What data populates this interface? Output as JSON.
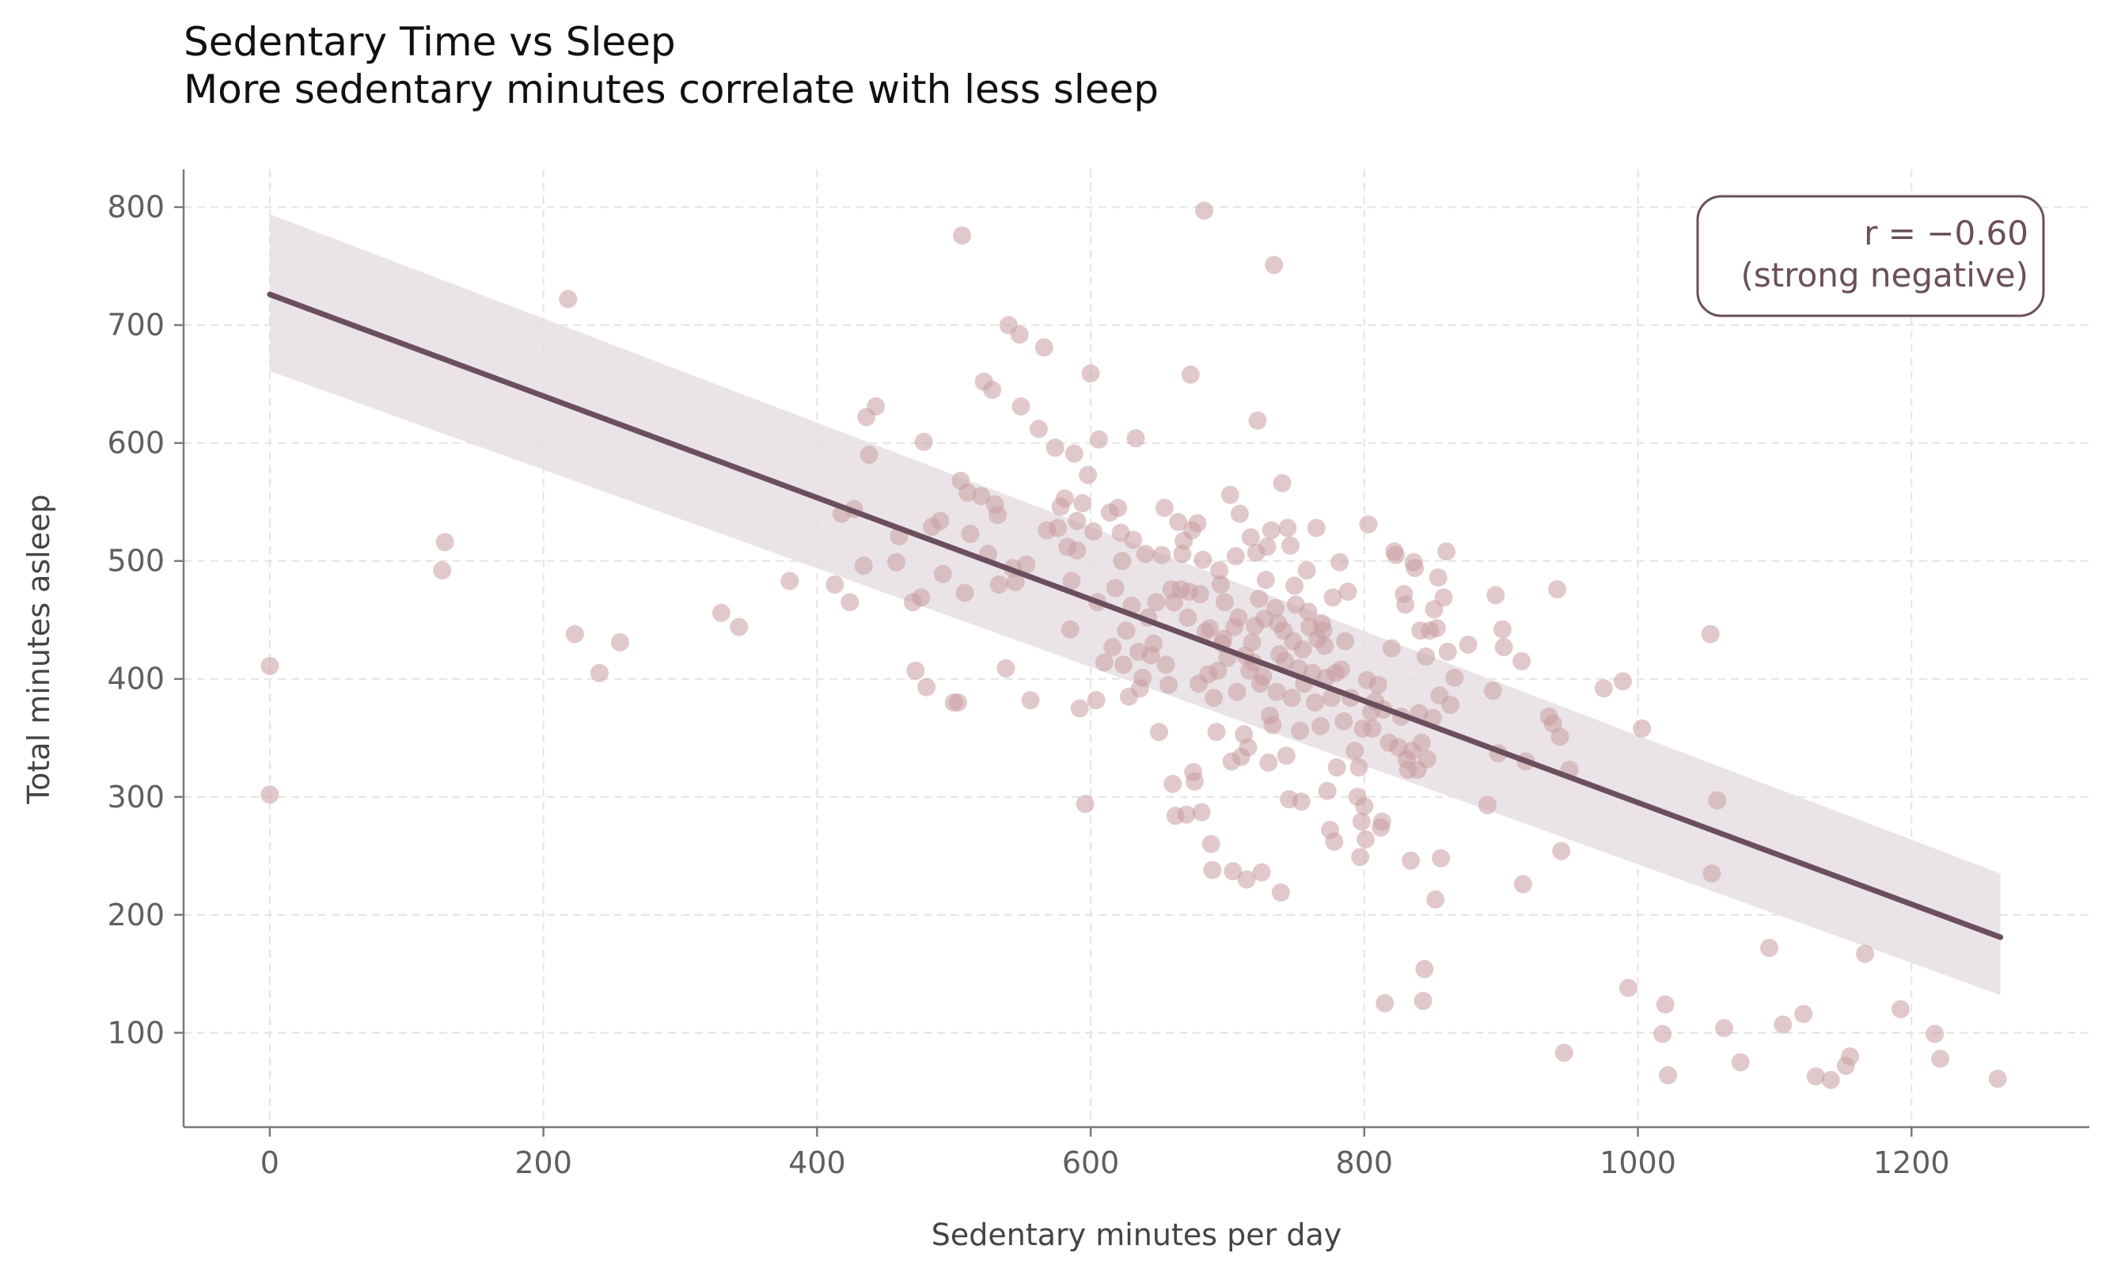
{
  "chart_data": {
    "type": "scatter",
    "title": "Sedentary Time vs Sleep",
    "subtitle": "More sedentary minutes correlate with less sleep",
    "xlabel": "Sedentary minutes per day",
    "ylabel": "Total minutes asleep",
    "xlim": [
      -63,
      1330
    ],
    "ylim": [
      20,
      832
    ],
    "x_ticks": [
      0,
      200,
      400,
      600,
      800,
      1000,
      1200
    ],
    "y_ticks": [
      100,
      200,
      300,
      400,
      500,
      600,
      700,
      800
    ],
    "grid": true,
    "colors": {
      "points": "#c99ca0",
      "line": "#6b4f5e",
      "band": "#e6dfe4",
      "grid": "#e4e4e4",
      "axis": "#7a7a7a"
    },
    "regression": {
      "x": [
        0,
        1265
      ],
      "y": [
        726,
        181
      ],
      "band_lower": [
        661,
        132
      ],
      "band_upper": [
        794,
        235
      ]
    },
    "annotation": {
      "line1": "r = −0.60",
      "line2": "(strong negative)"
    },
    "points": [
      [
        0,
        411
      ],
      [
        0,
        302
      ],
      [
        126,
        492
      ],
      [
        128,
        516
      ],
      [
        218,
        722
      ],
      [
        223,
        438
      ],
      [
        241,
        405
      ],
      [
        256,
        431
      ],
      [
        330,
        456
      ],
      [
        343,
        444
      ],
      [
        380,
        483
      ],
      [
        413,
        480
      ],
      [
        418,
        540
      ],
      [
        424,
        465
      ],
      [
        427,
        544
      ],
      [
        434,
        496
      ],
      [
        436,
        622
      ],
      [
        438,
        590
      ],
      [
        443,
        631
      ],
      [
        458,
        499
      ],
      [
        460,
        521
      ],
      [
        470,
        465
      ],
      [
        472,
        407
      ],
      [
        476,
        469
      ],
      [
        478,
        601
      ],
      [
        480,
        393
      ],
      [
        484,
        529
      ],
      [
        490,
        534
      ],
      [
        492,
        489
      ],
      [
        500,
        380
      ],
      [
        503,
        380
      ],
      [
        505,
        568
      ],
      [
        506,
        776
      ],
      [
        508,
        473
      ],
      [
        510,
        558
      ],
      [
        512,
        523
      ],
      [
        520,
        555
      ],
      [
        522,
        652
      ],
      [
        525,
        506
      ],
      [
        528,
        645
      ],
      [
        530,
        548
      ],
      [
        532,
        539
      ],
      [
        533,
        480
      ],
      [
        538,
        409
      ],
      [
        540,
        700
      ],
      [
        543,
        494
      ],
      [
        545,
        482
      ],
      [
        548,
        692
      ],
      [
        549,
        631
      ],
      [
        553,
        497
      ],
      [
        556,
        382
      ],
      [
        562,
        612
      ],
      [
        566,
        681
      ],
      [
        568,
        526
      ],
      [
        574,
        596
      ],
      [
        576,
        528
      ],
      [
        578,
        546
      ],
      [
        581,
        553
      ],
      [
        583,
        512
      ],
      [
        585,
        442
      ],
      [
        586,
        483
      ],
      [
        588,
        591
      ],
      [
        590,
        509
      ],
      [
        590,
        534
      ],
      [
        592,
        375
      ],
      [
        594,
        549
      ],
      [
        596,
        294
      ],
      [
        598,
        573
      ],
      [
        600,
        659
      ],
      [
        602,
        525
      ],
      [
        604,
        382
      ],
      [
        605,
        465
      ],
      [
        606,
        603
      ],
      [
        610,
        414
      ],
      [
        614,
        541
      ],
      [
        616,
        427
      ],
      [
        618,
        477
      ],
      [
        620,
        545
      ],
      [
        622,
        524
      ],
      [
        623,
        500
      ],
      [
        624,
        412
      ],
      [
        626,
        441
      ],
      [
        628,
        385
      ],
      [
        630,
        462
      ],
      [
        631,
        518
      ],
      [
        633,
        604
      ],
      [
        635,
        423
      ],
      [
        636,
        392
      ],
      [
        638,
        401
      ],
      [
        640,
        506
      ],
      [
        642,
        452
      ],
      [
        644,
        420
      ],
      [
        646,
        430
      ],
      [
        648,
        465
      ],
      [
        650,
        355
      ],
      [
        652,
        505
      ],
      [
        654,
        545
      ],
      [
        655,
        412
      ],
      [
        657,
        395
      ],
      [
        659,
        476
      ],
      [
        660,
        311
      ],
      [
        661,
        465
      ],
      [
        662,
        284
      ],
      [
        664,
        533
      ],
      [
        666,
        476
      ],
      [
        667,
        506
      ],
      [
        668,
        517
      ],
      [
        670,
        285
      ],
      [
        671,
        452
      ],
      [
        672,
        474
      ],
      [
        673,
        658
      ],
      [
        674,
        526
      ],
      [
        675,
        321
      ],
      [
        676,
        313
      ],
      [
        678,
        532
      ],
      [
        679,
        396
      ],
      [
        680,
        472
      ],
      [
        681,
        287
      ],
      [
        682,
        501
      ],
      [
        683,
        797
      ],
      [
        684,
        440
      ],
      [
        686,
        404
      ],
      [
        687,
        443
      ],
      [
        688,
        260
      ],
      [
        689,
        238
      ],
      [
        690,
        384
      ],
      [
        692,
        355
      ],
      [
        693,
        407
      ],
      [
        694,
        492
      ],
      [
        695,
        480
      ],
      [
        696,
        430
      ],
      [
        697,
        434
      ],
      [
        698,
        465
      ],
      [
        700,
        418
      ],
      [
        702,
        556
      ],
      [
        703,
        330
      ],
      [
        704,
        237
      ],
      [
        705,
        444
      ],
      [
        706,
        504
      ],
      [
        707,
        389
      ],
      [
        708,
        452
      ],
      [
        709,
        540
      ],
      [
        710,
        334
      ],
      [
        712,
        353
      ],
      [
        713,
        420
      ],
      [
        714,
        230
      ],
      [
        715,
        342
      ],
      [
        716,
        407
      ],
      [
        717,
        520
      ],
      [
        718,
        431
      ],
      [
        719,
        414
      ],
      [
        720,
        445
      ],
      [
        721,
        507
      ],
      [
        722,
        619
      ],
      [
        723,
        468
      ],
      [
        724,
        396
      ],
      [
        725,
        236
      ],
      [
        726,
        402
      ],
      [
        727,
        451
      ],
      [
        728,
        484
      ],
      [
        729,
        512
      ],
      [
        730,
        329
      ],
      [
        731,
        369
      ],
      [
        732,
        526
      ],
      [
        733,
        361
      ],
      [
        734,
        751
      ],
      [
        735,
        460
      ],
      [
        736,
        389
      ],
      [
        737,
        447
      ],
      [
        738,
        421
      ],
      [
        739,
        219
      ],
      [
        740,
        566
      ],
      [
        741,
        441
      ],
      [
        742,
        415
      ],
      [
        743,
        335
      ],
      [
        744,
        528
      ],
      [
        745,
        298
      ],
      [
        746,
        513
      ],
      [
        747,
        384
      ],
      [
        748,
        432
      ],
      [
        749,
        479
      ],
      [
        750,
        463
      ],
      [
        752,
        409
      ],
      [
        753,
        356
      ],
      [
        754,
        296
      ],
      [
        755,
        425
      ],
      [
        756,
        396
      ],
      [
        758,
        492
      ],
      [
        759,
        457
      ],
      [
        760,
        444
      ],
      [
        762,
        405
      ],
      [
        764,
        380
      ],
      [
        765,
        528
      ],
      [
        766,
        434
      ],
      [
        768,
        360
      ],
      [
        769,
        447
      ],
      [
        770,
        441
      ],
      [
        771,
        428
      ],
      [
        772,
        401
      ],
      [
        773,
        305
      ],
      [
        775,
        272
      ],
      [
        776,
        384
      ],
      [
        777,
        469
      ],
      [
        778,
        262
      ],
      [
        779,
        405
      ],
      [
        780,
        325
      ],
      [
        782,
        499
      ],
      [
        783,
        408
      ],
      [
        785,
        364
      ],
      [
        786,
        432
      ],
      [
        788,
        474
      ],
      [
        790,
        384
      ],
      [
        793,
        339
      ],
      [
        795,
        300
      ],
      [
        796,
        325
      ],
      [
        797,
        249
      ],
      [
        798,
        279
      ],
      [
        799,
        358
      ],
      [
        800,
        292
      ],
      [
        801,
        264
      ],
      [
        802,
        399
      ],
      [
        803,
        531
      ],
      [
        805,
        372
      ],
      [
        806,
        358
      ],
      [
        808,
        381
      ],
      [
        810,
        395
      ],
      [
        812,
        274
      ],
      [
        813,
        279
      ],
      [
        814,
        374
      ],
      [
        815,
        125
      ],
      [
        818,
        346
      ],
      [
        820,
        426
      ],
      [
        822,
        508
      ],
      [
        823,
        505
      ],
      [
        825,
        342
      ],
      [
        827,
        368
      ],
      [
        829,
        472
      ],
      [
        830,
        463
      ],
      [
        831,
        332
      ],
      [
        832,
        323
      ],
      [
        834,
        246
      ],
      [
        835,
        339
      ],
      [
        836,
        499
      ],
      [
        837,
        494
      ],
      [
        839,
        323
      ],
      [
        840,
        371
      ],
      [
        841,
        441
      ],
      [
        842,
        346
      ],
      [
        843,
        127
      ],
      [
        844,
        154
      ],
      [
        845,
        419
      ],
      [
        846,
        332
      ],
      [
        848,
        441
      ],
      [
        850,
        367
      ],
      [
        851,
        459
      ],
      [
        852,
        213
      ],
      [
        853,
        443
      ],
      [
        854,
        486
      ],
      [
        855,
        386
      ],
      [
        856,
        248
      ],
      [
        858,
        469
      ],
      [
        860,
        508
      ],
      [
        861,
        423
      ],
      [
        863,
        378
      ],
      [
        866,
        401
      ],
      [
        876,
        429
      ],
      [
        890,
        293
      ],
      [
        894,
        390
      ],
      [
        896,
        471
      ],
      [
        898,
        337
      ],
      [
        901,
        442
      ],
      [
        902,
        427
      ],
      [
        915,
        415
      ],
      [
        916,
        226
      ],
      [
        918,
        330
      ],
      [
        935,
        368
      ],
      [
        938,
        362
      ],
      [
        941,
        476
      ],
      [
        943,
        351
      ],
      [
        944,
        254
      ],
      [
        946,
        83
      ],
      [
        950,
        323
      ],
      [
        975,
        392
      ],
      [
        989,
        398
      ],
      [
        993,
        138
      ],
      [
        1003,
        358
      ],
      [
        1018,
        99
      ],
      [
        1020,
        124
      ],
      [
        1022,
        64
      ],
      [
        1053,
        438
      ],
      [
        1054,
        235
      ],
      [
        1058,
        297
      ],
      [
        1063,
        104
      ],
      [
        1075,
        75
      ],
      [
        1096,
        172
      ],
      [
        1106,
        107
      ],
      [
        1121,
        116
      ],
      [
        1130,
        63
      ],
      [
        1141,
        60
      ],
      [
        1152,
        72
      ],
      [
        1155,
        80
      ],
      [
        1166,
        167
      ],
      [
        1192,
        120
      ],
      [
        1217,
        99
      ],
      [
        1221,
        78
      ],
      [
        1263,
        61
      ]
    ]
  }
}
